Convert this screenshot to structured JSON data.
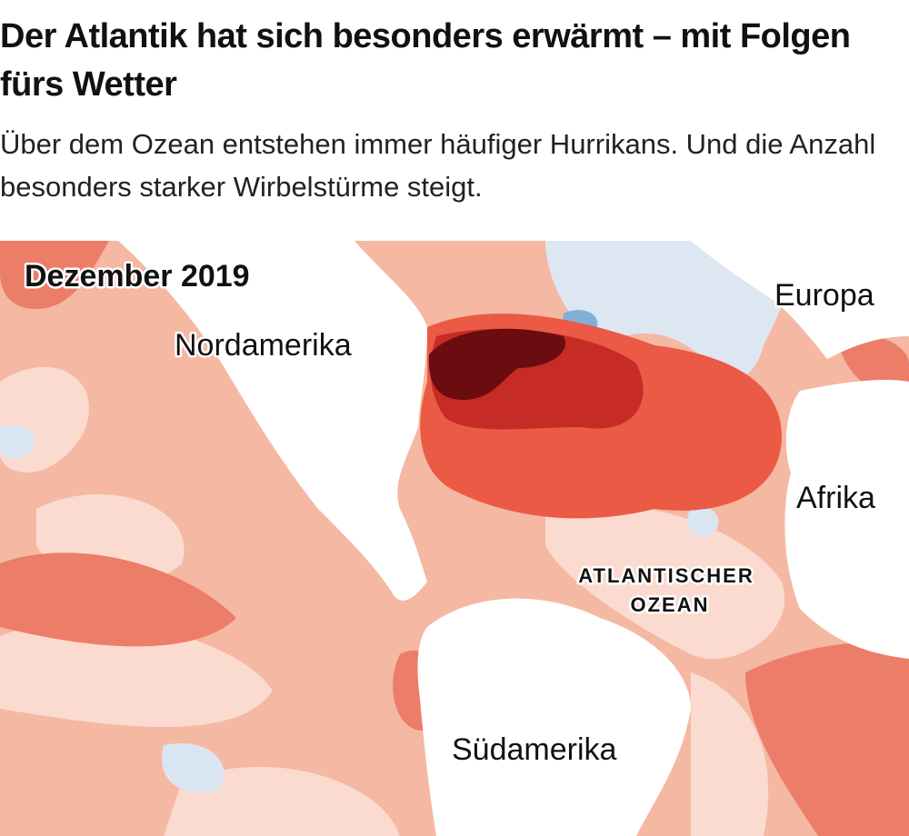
{
  "header": {
    "title": "Der Atlantik hat sich besonders erwärmt – mit Folgen fürs Wetter",
    "subtitle": "Über dem Ozean entstehen immer häufiger Hurrikans. Und die Anzahl besonders starker Wirbelstürme steigt."
  },
  "map": {
    "date": "Dezember 2019",
    "labels": {
      "north_america": "Nordamerika",
      "europe": "Europa",
      "africa": "Afrika",
      "south_america": "Südamerika",
      "ocean": [
        "ATLANTISCHER",
        "OZEAN"
      ]
    }
  }
}
